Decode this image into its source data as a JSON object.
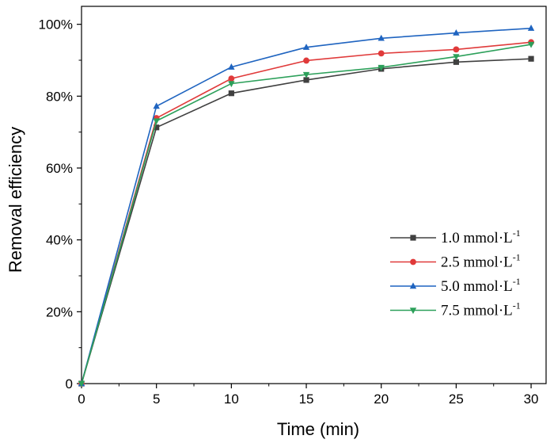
{
  "chart_data": {
    "type": "line",
    "xlabel": "Time (min)",
    "ylabel": "Removal efficiency",
    "xlim": [
      0,
      31
    ],
    "ylim": [
      0,
      105
    ],
    "x_ticks": [
      0,
      5,
      10,
      15,
      20,
      25,
      30
    ],
    "x_tick_labels": [
      "0",
      "5",
      "10",
      "15",
      "20",
      "25",
      "30"
    ],
    "y_ticks": [
      0,
      20,
      40,
      60,
      80,
      100
    ],
    "y_tick_labels": [
      "0",
      "20%",
      "40%",
      "60%",
      "80%",
      "100%"
    ],
    "x": [
      0,
      5,
      10,
      15,
      20,
      25,
      30
    ],
    "series": [
      {
        "name": "1.0 mmol·L",
        "sup": "-1",
        "color": "#404040",
        "marker": "square",
        "values": [
          0,
          71.3,
          80.8,
          84.5,
          87.6,
          89.5,
          90.4
        ]
      },
      {
        "name": "2.5 mmol·L",
        "sup": "-1",
        "color": "#e03a3a",
        "marker": "circle",
        "values": [
          0,
          73.9,
          84.9,
          89.9,
          91.9,
          93.0,
          95.0
        ]
      },
      {
        "name": "5.0 mmol·L",
        "sup": "-1",
        "color": "#1f64c0",
        "marker": "triangle-up",
        "values": [
          0,
          77.2,
          88.1,
          93.6,
          96.1,
          97.6,
          98.9
        ]
      },
      {
        "name": "7.5 mmol·L",
        "sup": "-1",
        "color": "#2ca05a",
        "marker": "triangle-down",
        "values": [
          0,
          73.1,
          83.5,
          86.0,
          88.0,
          91.0,
          94.4
        ]
      }
    ],
    "grid": false,
    "legend_position": "center-right"
  }
}
